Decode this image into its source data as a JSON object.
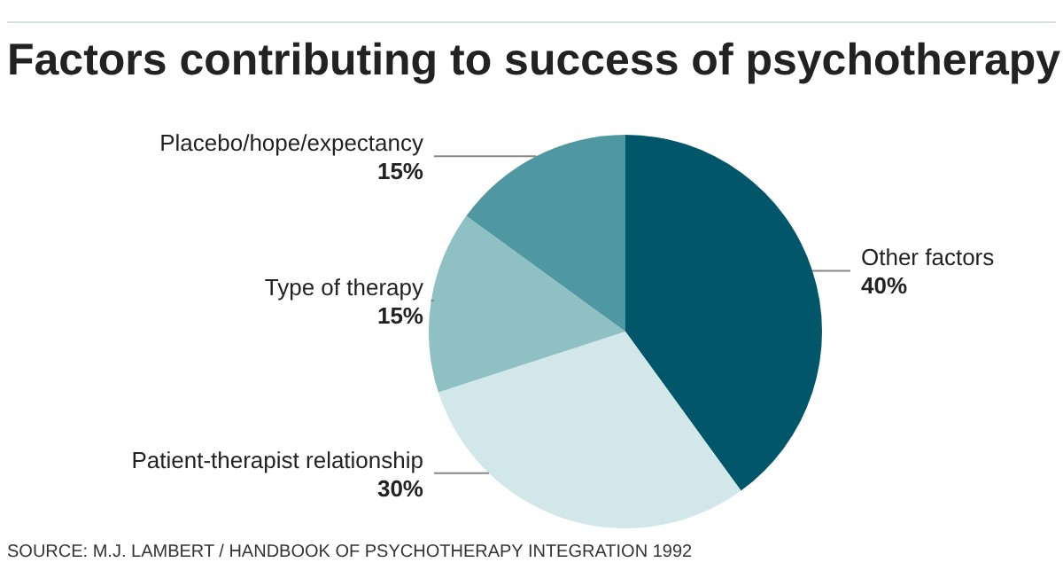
{
  "chart_data": {
    "type": "pie",
    "title": "Factors contributing to success of psychotherapy",
    "categories": [
      "Other factors",
      "Patient-therapist relationship",
      "Type of therapy",
      "Placebo/hope/expectancy"
    ],
    "values": [
      40,
      30,
      15,
      15
    ],
    "value_labels": [
      "40%",
      "30%",
      "15%",
      "15%"
    ],
    "colors": [
      "#02566a",
      "#d2e7e9",
      "#8fc1c4",
      "#4f98a1"
    ],
    "annotations": [
      "SOURCE: M.J. LAMBERT / HANDBOOK OF PSYCHOTHERAPY INTEGRATION 1992"
    ]
  }
}
